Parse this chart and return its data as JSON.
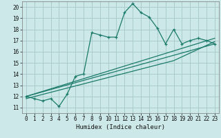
{
  "xlabel": "Humidex (Indice chaleur)",
  "bg_color": "#cce8e8",
  "grid_color": "#aacccc",
  "line_color": "#1a7a6a",
  "xlim": [
    -0.5,
    23.5
  ],
  "ylim": [
    10.5,
    20.5
  ],
  "xticks": [
    0,
    1,
    2,
    3,
    4,
    5,
    6,
    7,
    8,
    9,
    10,
    11,
    12,
    13,
    14,
    15,
    16,
    17,
    18,
    19,
    20,
    21,
    22,
    23
  ],
  "yticks": [
    11,
    12,
    13,
    14,
    15,
    16,
    17,
    18,
    19,
    20
  ],
  "line1_x": [
    0,
    1,
    2,
    3,
    4,
    5,
    6,
    7,
    8,
    9,
    10,
    11,
    12,
    13,
    14,
    15,
    16,
    17,
    18,
    19,
    20,
    21,
    22,
    23
  ],
  "line1_y": [
    12.0,
    11.8,
    11.6,
    11.8,
    11.1,
    12.2,
    13.8,
    14.0,
    17.7,
    17.5,
    17.3,
    17.3,
    19.5,
    20.3,
    19.5,
    19.1,
    18.1,
    16.7,
    18.0,
    16.7,
    17.0,
    17.2,
    17.0,
    16.7
  ],
  "line2_x": [
    0,
    23
  ],
  "line2_y": [
    12.0,
    17.2
  ],
  "line3_x": [
    0,
    23
  ],
  "line3_y": [
    12.0,
    16.7
  ],
  "line4_x": [
    0,
    18,
    23
  ],
  "line4_y": [
    11.8,
    15.2,
    16.9
  ]
}
